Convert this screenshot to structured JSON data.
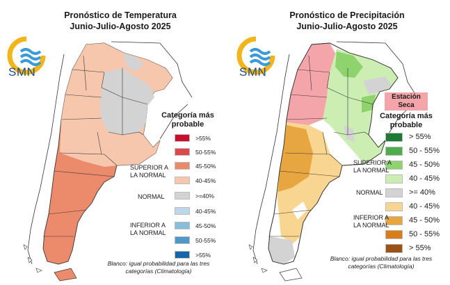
{
  "temperature_panel": {
    "title_line1": "Pronóstico de Temperatura",
    "title_line2": "Junio-Julio-Agosto 2025",
    "logo_text": "SMN",
    "legend_title_line1": "Categoría más",
    "legend_title_line2": "probable",
    "legend_items": [
      {
        "label": ">55%",
        "color": "#c8102e"
      },
      {
        "label": "50-55%",
        "color": "#dd4a4e"
      },
      {
        "label": "45-50%",
        "color": "#ec8a6c"
      },
      {
        "label": "40-45%",
        "color": "#f7c7ad"
      },
      {
        "label": ">=40%",
        "color": "#d3d3d3"
      },
      {
        "label": "40-45%",
        "color": "#bcd8ea"
      },
      {
        "label": "45-50%",
        "color": "#88bddc"
      },
      {
        "label": "50-55%",
        "color": "#4e98c8"
      },
      {
        "label": ">55%",
        "color": "#1565a8"
      }
    ],
    "group_superior_line1": "SUPERIOR A",
    "group_superior_line2": "LA NORMAL",
    "group_normal": "NORMAL",
    "group_inferior_line1": "INFERIOR A",
    "group_inferior_line2": "LA NORMAL",
    "footnote_line1": "Blanco: igual probabilidad para las tres",
    "footnote_line2": "categorías (Climatología)"
  },
  "precipitation_panel": {
    "title_line1": "Pronóstico de Precipitación",
    "title_line2": "Junio-Julio-Agosto 2025",
    "logo_text": "SMN",
    "dry_season_line1": "Estación",
    "dry_season_line2": "Seca",
    "dry_season_color": "#f3a5aa",
    "legend_title_line1": "Categoría más",
    "legend_title_line2": "probable",
    "legend_items": [
      {
        "label": "> 55%",
        "color": "#1e7b34"
      },
      {
        "label": "50 - 55%",
        "color": "#4fae4c"
      },
      {
        "label": "45 - 50%",
        "color": "#8fd36f"
      },
      {
        "label": "40 - 45%",
        "color": "#cdeeb2"
      },
      {
        "label": ">= 40%",
        "color": "#d3d3d3"
      },
      {
        "label": "40 - 45%",
        "color": "#f9d592"
      },
      {
        "label": "45 - 50%",
        "color": "#e8a640"
      },
      {
        "label": "50 - 55%",
        "color": "#d87c1c"
      },
      {
        "label": "> 55%",
        "color": "#9b5216"
      }
    ],
    "group_superior_line1": "SUPERIOR A",
    "group_superior_line2": "LA NORMAL",
    "group_normal": "NORMAL",
    "group_inferior_line1": "INFERIOR A",
    "group_inferior_line2": "LA NORMAL",
    "footnote_line1": "Blanco: igual probabilidad para las tres",
    "footnote_line2": "categorías (Climatología)"
  }
}
